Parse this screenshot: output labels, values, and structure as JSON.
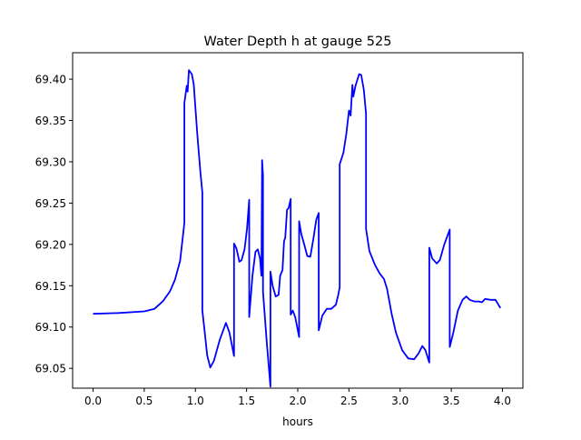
{
  "chart_data": {
    "type": "line",
    "title": "Water Depth h at gauge 525",
    "xlabel": "hours",
    "ylabel": "",
    "xlim": [
      -0.2,
      4.2
    ],
    "ylim": [
      69.026,
      69.432
    ],
    "xticks": [
      0.0,
      0.5,
      1.0,
      1.5,
      2.0,
      2.5,
      3.0,
      3.5,
      4.0
    ],
    "xtick_labels": [
      "0.0",
      "0.5",
      "1.0",
      "1.5",
      "2.0",
      "2.5",
      "3.0",
      "3.5",
      "4.0"
    ],
    "yticks": [
      69.05,
      69.1,
      69.15,
      69.2,
      69.25,
      69.3,
      69.35,
      69.4
    ],
    "ytick_labels": [
      "69.05",
      "69.10",
      "69.15",
      "69.20",
      "69.25",
      "69.30",
      "69.35",
      "69.40"
    ],
    "grid": false,
    "series": [
      {
        "name": "h",
        "color": "#0000ff",
        "x": [
          0.0,
          0.25,
          0.5,
          0.6,
          0.68,
          0.75,
          0.8,
          0.85,
          0.892,
          0.892,
          0.915,
          0.924,
          0.936,
          0.965,
          0.983,
          1.018,
          1.048,
          1.068,
          1.068,
          1.092,
          1.115,
          1.145,
          1.18,
          1.239,
          1.298,
          1.333,
          1.377,
          1.377,
          1.401,
          1.43,
          1.451,
          1.48,
          1.504,
          1.525,
          1.525,
          1.557,
          1.587,
          1.61,
          1.631,
          1.645,
          1.651,
          1.66,
          1.66,
          1.695,
          1.733,
          1.733,
          1.754,
          1.784,
          1.813,
          1.828,
          1.851,
          1.866,
          1.878,
          1.895,
          1.91,
          1.931,
          1.931,
          1.951,
          1.975,
          2.013,
          2.013,
          2.034,
          2.063,
          2.093,
          2.122,
          2.152,
          2.181,
          2.205,
          2.205,
          2.24,
          2.284,
          2.328,
          2.373,
          2.396,
          2.41,
          2.41,
          2.446,
          2.475,
          2.5,
          2.516,
          2.534,
          2.543,
          2.564,
          2.6,
          2.62,
          2.646,
          2.667,
          2.667,
          2.7,
          2.755,
          2.8,
          2.843,
          2.873,
          2.917,
          2.96,
          3.02,
          3.08,
          3.137,
          3.18,
          3.217,
          3.247,
          3.285,
          3.285,
          3.314,
          3.358,
          3.388,
          3.432,
          3.485,
          3.485,
          3.52,
          3.565,
          3.61,
          3.647,
          3.68,
          3.726,
          3.77,
          3.8,
          3.83,
          3.883,
          3.932,
          3.98
        ],
        "y": [
          69.116,
          69.117,
          69.119,
          69.122,
          69.131,
          69.143,
          69.157,
          69.18,
          69.226,
          69.371,
          69.392,
          69.385,
          69.411,
          69.406,
          69.394,
          69.334,
          69.288,
          69.263,
          69.12,
          69.093,
          69.066,
          69.051,
          69.059,
          69.085,
          69.105,
          69.093,
          69.065,
          69.201,
          69.195,
          69.179,
          69.181,
          69.194,
          69.219,
          69.254,
          69.112,
          69.162,
          69.191,
          69.194,
          69.183,
          69.162,
          69.302,
          69.284,
          69.143,
          69.085,
          69.028,
          69.167,
          69.15,
          69.137,
          69.139,
          69.162,
          69.169,
          69.204,
          69.208,
          69.242,
          69.244,
          69.255,
          69.115,
          69.12,
          69.112,
          69.088,
          69.228,
          69.213,
          69.2,
          69.186,
          69.185,
          69.206,
          69.23,
          69.238,
          69.096,
          69.114,
          69.122,
          69.122,
          69.127,
          69.139,
          69.148,
          69.297,
          69.311,
          69.334,
          69.362,
          69.356,
          69.393,
          69.379,
          69.392,
          69.406,
          69.405,
          69.387,
          69.358,
          69.219,
          69.192,
          69.175,
          69.165,
          69.158,
          69.146,
          69.116,
          69.093,
          69.072,
          69.062,
          69.061,
          69.068,
          69.077,
          69.072,
          69.057,
          69.196,
          69.183,
          69.177,
          69.181,
          69.2,
          69.218,
          69.076,
          69.093,
          69.12,
          69.133,
          69.137,
          69.133,
          69.131,
          69.131,
          69.13,
          69.134,
          69.133,
          69.133,
          69.123
        ]
      }
    ]
  }
}
